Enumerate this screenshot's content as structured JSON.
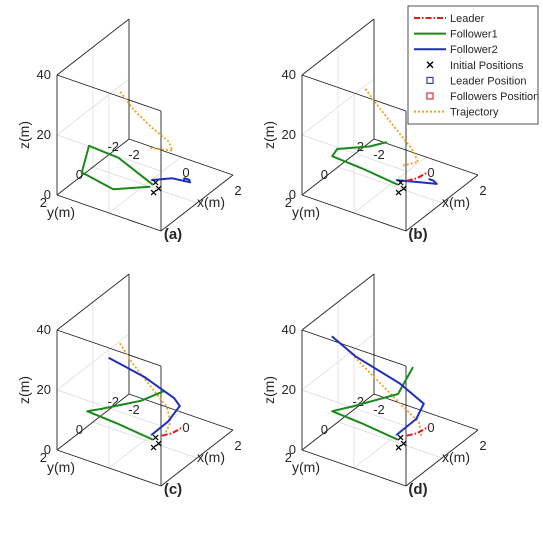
{
  "legend": {
    "items": [
      {
        "label": "Leader",
        "color": "#e41a1c",
        "style": "dashdot"
      },
      {
        "label": "Follower1",
        "color": "#1a8a1a",
        "style": "solid"
      },
      {
        "label": "Follower2",
        "color": "#1f2fbf",
        "style": "solid"
      },
      {
        "label": "Initial Positions",
        "color": "#000000",
        "style": "x-marker"
      },
      {
        "label": "Leader Position",
        "color": "#1f2fbf",
        "style": "square-marker"
      },
      {
        "label": "Followers Position",
        "color": "#e41a1c",
        "style": "square-marker"
      },
      {
        "label": "Trajectory",
        "color": "#f0a020",
        "style": "dotted"
      }
    ]
  },
  "chart_data": [
    {
      "type": "line-3d",
      "caption": "(a)",
      "xlabel": "x(m)",
      "ylabel": "y(m)",
      "zlabel": "z(m)",
      "xticks": [
        -2,
        0,
        2
      ],
      "yticks": [
        -2,
        0,
        2
      ],
      "zticks": [
        0,
        20,
        40
      ],
      "xlim": [
        -2,
        2
      ],
      "ylim": [
        -2,
        2
      ],
      "zlim": [
        0,
        40
      ],
      "grid": true,
      "series": [
        {
          "name": "Trajectory",
          "x": [
            0.2,
            1.4,
            1.6,
            1.3,
            0.8,
            0.4
          ],
          "y": [
            0.0,
            0.5,
            1.0,
            1.5,
            1.8,
            2.0
          ],
          "z": [
            13,
            18,
            24,
            30,
            36,
            42
          ]
        },
        {
          "name": "Follower1",
          "x": [
            0.3,
            -0.8,
            -1.6,
            -1.6,
            -0.6,
            0.2
          ],
          "y": [
            0.0,
            0.3,
            0.8,
            1.2,
            0.9,
            0.0
          ],
          "z": [
            1,
            8,
            12,
            5,
            1,
            0
          ]
        },
        {
          "name": "Follower2",
          "x": [
            0.1,
            0.5,
            0.9,
            0.6,
            0.2,
            0.1
          ],
          "y": [
            -0.2,
            -0.8,
            -1.2,
            -1.6,
            -1.9,
            -2.0
          ],
          "z": [
            1,
            0,
            -2,
            -4,
            -6,
            -8
          ]
        }
      ]
    },
    {
      "type": "line-3d",
      "caption": "(b)",
      "xlabel": "x(m)",
      "ylabel": "y(m)",
      "zlabel": "z(m)",
      "xticks": [
        -2,
        0,
        2
      ],
      "yticks": [
        -2,
        0,
        2
      ],
      "zticks": [
        0,
        20,
        40
      ],
      "xlim": [
        -2,
        2
      ],
      "ylim": [
        -2,
        2
      ],
      "zlim": [
        0,
        40
      ],
      "grid": true,
      "series": [
        {
          "name": "Trajectory",
          "x": [
            0.5,
            1.5,
            1.6,
            1.2,
            0.8,
            0.4
          ],
          "y": [
            0.0,
            0.6,
            1.1,
            1.5,
            1.8,
            2.0
          ],
          "z": [
            8,
            15,
            22,
            30,
            37,
            43
          ]
        },
        {
          "name": "Follower1",
          "x": [
            0.3,
            -0.8,
            -1.6,
            -1.2,
            0.0,
            0.5
          ],
          "y": [
            0.0,
            0.4,
            0.9,
            1.2,
            1.1,
            0.9
          ],
          "z": [
            1,
            5,
            9,
            14,
            18,
            20
          ]
        },
        {
          "name": "Follower2",
          "x": [
            0.1,
            0.6,
            0.9,
            0.5,
            0.1
          ],
          "y": [
            -0.2,
            -0.8,
            -1.3,
            -1.7,
            -2.0
          ],
          "z": [
            1,
            -1,
            -3,
            -5,
            -7
          ]
        },
        {
          "name": "Leader",
          "x": [
            0.3,
            0.9,
            1.5
          ],
          "y": [
            -0.5,
            -0.2,
            0.0
          ],
          "z": [
            0,
            4,
            9
          ]
        }
      ]
    },
    {
      "type": "line-3d",
      "caption": "(c)",
      "xlabel": "x(m)",
      "ylabel": "y(m)",
      "zlabel": "z(m)",
      "xticks": [
        -2,
        0,
        2
      ],
      "yticks": [
        -2,
        0,
        2
      ],
      "zticks": [
        0,
        20,
        40
      ],
      "xlim": [
        -2,
        2
      ],
      "ylim": [
        -2,
        2
      ],
      "zlim": [
        0,
        40
      ],
      "grid": true,
      "series": [
        {
          "name": "Trajectory",
          "x": [
            0.8,
            1.4,
            1.6,
            1.2,
            0.8,
            0.4
          ],
          "y": [
            0.0,
            0.6,
            1.1,
            1.5,
            1.8,
            2.0
          ],
          "z": [
            5,
            13,
            21,
            29,
            36,
            43
          ]
        },
        {
          "name": "Follower1",
          "x": [
            0.3,
            -0.8,
            -1.6,
            -0.8,
            0.6,
            1.3
          ],
          "y": [
            0.0,
            0.4,
            0.9,
            1.3,
            1.1,
            0.8
          ],
          "z": [
            1,
            5,
            9,
            14,
            20,
            24
          ]
        },
        {
          "name": "Follower2",
          "x": [
            0.1,
            0.6,
            1.2,
            1.4,
            0.6,
            -0.5
          ],
          "y": [
            -0.2,
            -0.4,
            -0.2,
            0.4,
            0.9,
            1.3
          ],
          "z": [
            1,
            6,
            14,
            20,
            27,
            32
          ]
        },
        {
          "name": "Leader",
          "x": [
            0.3,
            0.9,
            1.5
          ],
          "y": [
            -0.5,
            -0.2,
            0.0
          ],
          "z": [
            0,
            4,
            9
          ]
        }
      ]
    },
    {
      "type": "line-3d",
      "caption": "(d)",
      "xlabel": "x(m)",
      "ylabel": "y(m)",
      "zlabel": "z(m)",
      "xticks": [
        -2,
        0,
        2
      ],
      "yticks": [
        -2,
        0,
        2
      ],
      "zticks": [
        0,
        20,
        40
      ],
      "xlim": [
        -2,
        2
      ],
      "ylim": [
        -2,
        2
      ],
      "zlim": [
        0,
        40
      ],
      "grid": true,
      "series": [
        {
          "name": "Trajectory",
          "x": [
            1.2,
            1.6,
            1.3,
            0.5,
            -0.3
          ],
          "y": [
            0.0,
            0.7,
            1.3,
            1.7,
            2.0
          ],
          "z": [
            5,
            14,
            22,
            31,
            39
          ]
        },
        {
          "name": "Follower1",
          "x": [
            0.3,
            -0.8,
            -1.6,
            -0.6,
            1.0,
            1.3
          ],
          "y": [
            0.0,
            0.4,
            0.9,
            1.2,
            1.0,
            0.6
          ],
          "z": [
            1,
            5,
            9,
            15,
            23,
            31
          ]
        },
        {
          "name": "Follower2",
          "x": [
            0.1,
            0.8,
            1.3,
            0.8,
            -0.5,
            -1.2
          ],
          "y": [
            -0.2,
            -0.3,
            0.0,
            0.6,
            1.2,
            1.5
          ],
          "z": [
            1,
            8,
            16,
            24,
            32,
            38
          ]
        },
        {
          "name": "Leader",
          "x": [
            0.3,
            0.9,
            1.5
          ],
          "y": [
            -0.5,
            -0.2,
            0.0
          ],
          "z": [
            0,
            4,
            9
          ]
        }
      ]
    }
  ]
}
